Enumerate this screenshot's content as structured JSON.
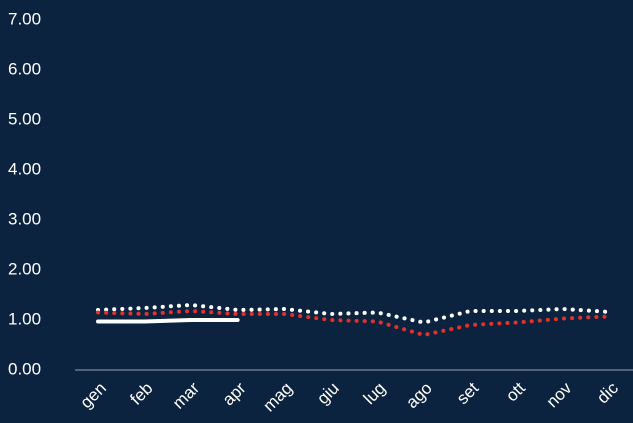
{
  "chart_data": {
    "type": "line",
    "categories": [
      "gen",
      "feb",
      "mar",
      "apr",
      "mag",
      "giu",
      "lug",
      "ago",
      "set",
      "ott",
      "nov",
      "dic"
    ],
    "series": [
      {
        "color": "#ffffff",
        "style": "dotted",
        "values": [
          1.2,
          1.24,
          1.3,
          1.2,
          1.22,
          1.12,
          1.15,
          0.95,
          1.18,
          1.18,
          1.22,
          1.16
        ]
      },
      {
        "color": "#e0312b",
        "style": "dotted",
        "values": [
          1.15,
          1.12,
          1.18,
          1.12,
          1.12,
          1.0,
          0.97,
          0.7,
          0.9,
          0.95,
          1.03,
          1.07
        ]
      },
      {
        "color": "#ffffff",
        "style": "solid",
        "values": [
          0.97,
          0.97,
          1.0,
          1.0,
          null,
          null,
          null,
          null,
          null,
          null,
          null,
          null
        ]
      }
    ],
    "ylim": [
      0,
      7
    ],
    "yticks": [
      {
        "value": 0,
        "label": "0.00"
      },
      {
        "value": 1,
        "label": "1.00"
      },
      {
        "value": 2,
        "label": "2.00"
      },
      {
        "value": 3,
        "label": "3.00"
      },
      {
        "value": 4,
        "label": "4.00"
      },
      {
        "value": 5,
        "label": "5.00"
      },
      {
        "value": 6,
        "label": "6.00"
      },
      {
        "value": 7,
        "label": "7.00"
      }
    ],
    "grid": false
  }
}
